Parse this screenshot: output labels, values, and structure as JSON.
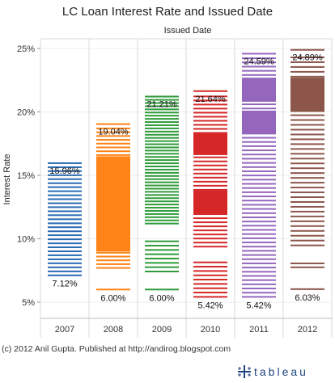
{
  "chart_data": {
    "type": "bar",
    "title": "LC Loan Interest Rate and Issued Date",
    "column_header": "Issued Date",
    "ylabel": "Interest Rate",
    "xlabel": "",
    "ylim": [
      4.5,
      26
    ],
    "yticks": [
      "5%",
      "10%",
      "15%",
      "20%",
      "25%"
    ],
    "ytick_values": [
      5,
      10,
      15,
      20,
      25
    ],
    "grid": true,
    "categories": [
      "2007",
      "2008",
      "2009",
      "2010",
      "2011",
      "2012"
    ],
    "colors": [
      "#2B6BB2",
      "#FF8316",
      "#2F9B3A",
      "#D62728",
      "#9467BD",
      "#8C564B"
    ],
    "max_labels": [
      "15.96%",
      "19.04%",
      "21.21%",
      "21.64%",
      "24.59%",
      "24.89%"
    ],
    "min_labels": [
      "7.12%",
      "6.00%",
      "6.00%",
      "5.42%",
      "5.42%",
      "6.03%"
    ],
    "series": [
      {
        "min": 7.12,
        "max": 15.96,
        "rates": [
          7.12,
          7.43,
          7.75,
          8.07,
          8.38,
          8.7,
          9.01,
          9.33,
          9.64,
          9.96,
          10.28,
          10.59,
          10.91,
          11.22,
          11.54,
          11.86,
          12.17,
          12.49,
          12.8,
          13.12,
          13.43,
          13.75,
          14.07,
          14.38,
          14.7,
          15.01,
          15.33,
          15.64,
          15.96
        ],
        "solid_ranges": []
      },
      {
        "min": 6.0,
        "max": 19.04,
        "rates": [
          6.0,
          7.7,
          8.0,
          8.3,
          8.6,
          8.9,
          16.6,
          16.9,
          17.2,
          17.5,
          17.8,
          18.1,
          18.4,
          18.7,
          19.04
        ],
        "solid_ranges": [
          [
            9.0,
            16.5
          ]
        ]
      },
      {
        "min": 6.0,
        "max": 21.21,
        "rates": [
          6.0,
          7.42,
          7.76,
          8.1,
          8.44,
          8.78,
          9.12,
          9.46,
          9.8,
          11.2,
          11.45,
          11.7,
          11.95,
          12.2,
          12.45,
          12.7,
          12.95,
          13.2,
          13.45,
          13.7,
          13.95,
          14.2,
          14.45,
          14.7,
          14.95,
          15.2,
          15.45,
          15.7,
          15.95,
          16.2,
          16.45,
          16.7,
          16.95,
          17.2,
          17.45,
          17.7,
          17.95,
          18.2,
          18.45,
          18.7,
          18.95,
          19.2,
          19.45,
          19.7,
          19.95,
          20.2,
          20.45,
          20.7,
          20.95,
          21.21
        ],
        "solid_ranges": []
      },
      {
        "min": 5.42,
        "max": 21.64,
        "rates": [
          5.42,
          5.76,
          6.1,
          6.44,
          6.78,
          7.12,
          7.46,
          7.8,
          8.14,
          9.38,
          9.7,
          10.02,
          10.34,
          10.66,
          10.98,
          11.3,
          11.62,
          11.94,
          12.26,
          12.58,
          12.9,
          13.22,
          13.54,
          13.86,
          14.18,
          14.5,
          14.82,
          15.14,
          15.46,
          15.78,
          16.1,
          16.42,
          16.74,
          17.06,
          17.38,
          17.7,
          18.02,
          18.34,
          18.66,
          18.98,
          19.3,
          19.62,
          19.94,
          20.26,
          20.58,
          20.9,
          21.22,
          21.64
        ],
        "solid_ranges": [
          [
            12.0,
            13.8
          ],
          [
            16.6,
            18.4
          ]
        ]
      },
      {
        "min": 5.42,
        "max": 24.59,
        "rates": [
          5.42,
          5.75,
          6.08,
          6.41,
          6.74,
          7.07,
          7.4,
          7.73,
          8.06,
          8.39,
          8.72,
          9.05,
          9.38,
          9.71,
          10.04,
          10.37,
          10.7,
          11.03,
          11.36,
          11.69,
          12.02,
          12.35,
          12.68,
          13.01,
          13.34,
          13.67,
          14.0,
          14.33,
          14.66,
          14.99,
          15.32,
          15.65,
          15.98,
          16.31,
          16.64,
          16.97,
          17.3,
          17.63,
          17.96,
          18.29,
          18.62,
          18.95,
          19.28,
          19.61,
          19.94,
          20.27,
          20.6,
          20.93,
          21.26,
          21.59,
          21.92,
          22.25,
          22.58,
          22.91,
          23.24,
          23.57,
          23.9,
          24.23,
          24.59
        ],
        "solid_ranges": [
          [
            18.3,
            20.1
          ],
          [
            20.8,
            22.7
          ]
        ]
      },
      {
        "min": 6.03,
        "max": 24.89,
        "rates": [
          6.03,
          7.75,
          8.06,
          9.48,
          9.86,
          10.24,
          10.62,
          11.0,
          11.38,
          11.76,
          12.14,
          12.52,
          12.9,
          13.28,
          13.66,
          14.04,
          14.42,
          14.8,
          15.18,
          15.56,
          15.94,
          16.32,
          16.7,
          17.08,
          17.46,
          17.84,
          18.22,
          18.6,
          18.98,
          19.36,
          19.74,
          20.12,
          20.5,
          20.88,
          21.26,
          21.64,
          22.02,
          22.4,
          22.78,
          23.16,
          23.54,
          23.92,
          24.3,
          24.89
        ],
        "solid_ranges": [
          [
            20.0,
            22.7
          ]
        ]
      }
    ]
  },
  "footer": {
    "credit": "(c) 2012 Anil Gupta. Published at http://andirog.blogspot.com"
  },
  "brand": {
    "name": "tableau",
    "logo_icon": "tableau-cross-icon",
    "color": "#1F457E"
  }
}
